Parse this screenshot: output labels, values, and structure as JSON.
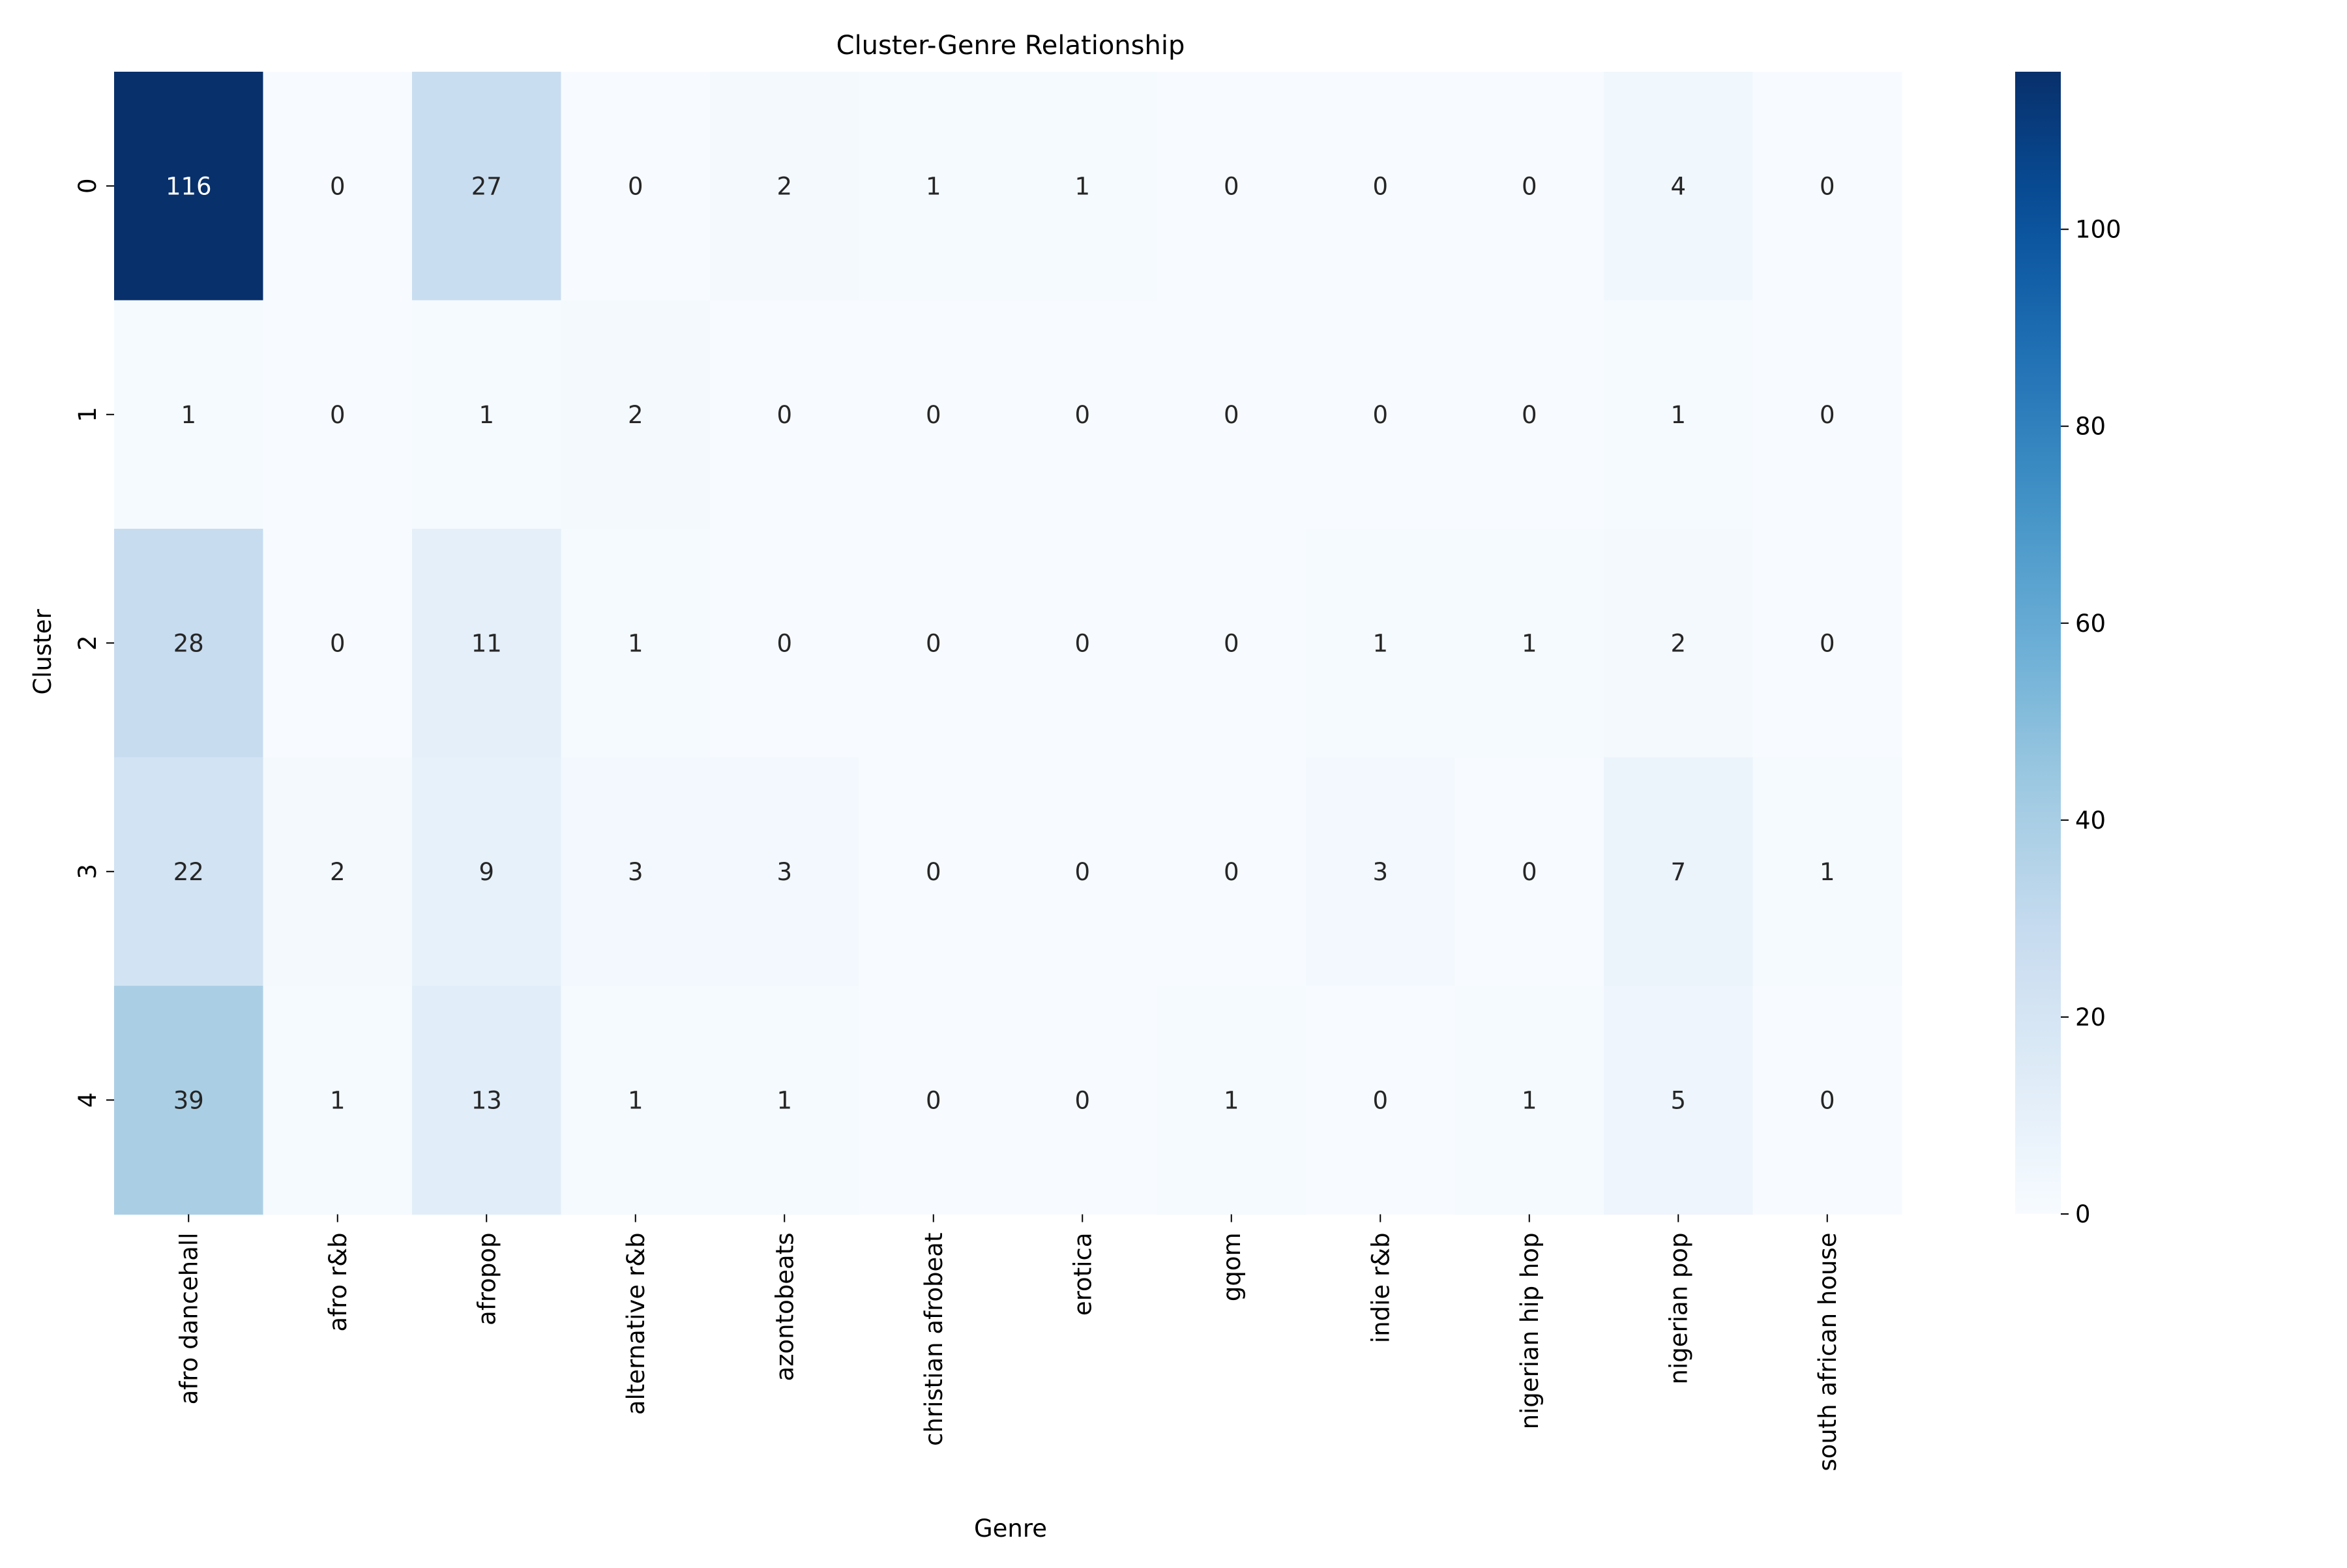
{
  "chart_data": {
    "type": "heatmap",
    "title": "Cluster-Genre Relationship",
    "xlabel": "Genre",
    "ylabel": "Cluster",
    "x_categories": [
      "afro dancehall",
      "afro r&b",
      "afropop",
      "alternative r&b",
      "azontobeats",
      "christian afrobeat",
      "erotica",
      "gqom",
      "indie r&b",
      "nigerian hip hop",
      "nigerian pop",
      "south african house"
    ],
    "y_categories": [
      "0",
      "1",
      "2",
      "3",
      "4"
    ],
    "values": [
      [
        116,
        0,
        27,
        0,
        2,
        1,
        1,
        0,
        0,
        0,
        4,
        0
      ],
      [
        1,
        0,
        1,
        2,
        0,
        0,
        0,
        0,
        0,
        0,
        1,
        0
      ],
      [
        28,
        0,
        11,
        1,
        0,
        0,
        0,
        0,
        1,
        1,
        2,
        0
      ],
      [
        22,
        2,
        9,
        3,
        3,
        0,
        0,
        0,
        3,
        0,
        7,
        1
      ],
      [
        39,
        1,
        13,
        1,
        1,
        0,
        0,
        1,
        0,
        1,
        5,
        0
      ]
    ],
    "colormap": "Blues",
    "value_range": [
      0,
      116
    ],
    "annotations": true,
    "colorbar": {
      "ticks": [
        0,
        20,
        40,
        60,
        80,
        100
      ],
      "tick_labels": [
        "0",
        "20",
        "40",
        "60",
        "80",
        "100"
      ]
    },
    "grid": false
  }
}
